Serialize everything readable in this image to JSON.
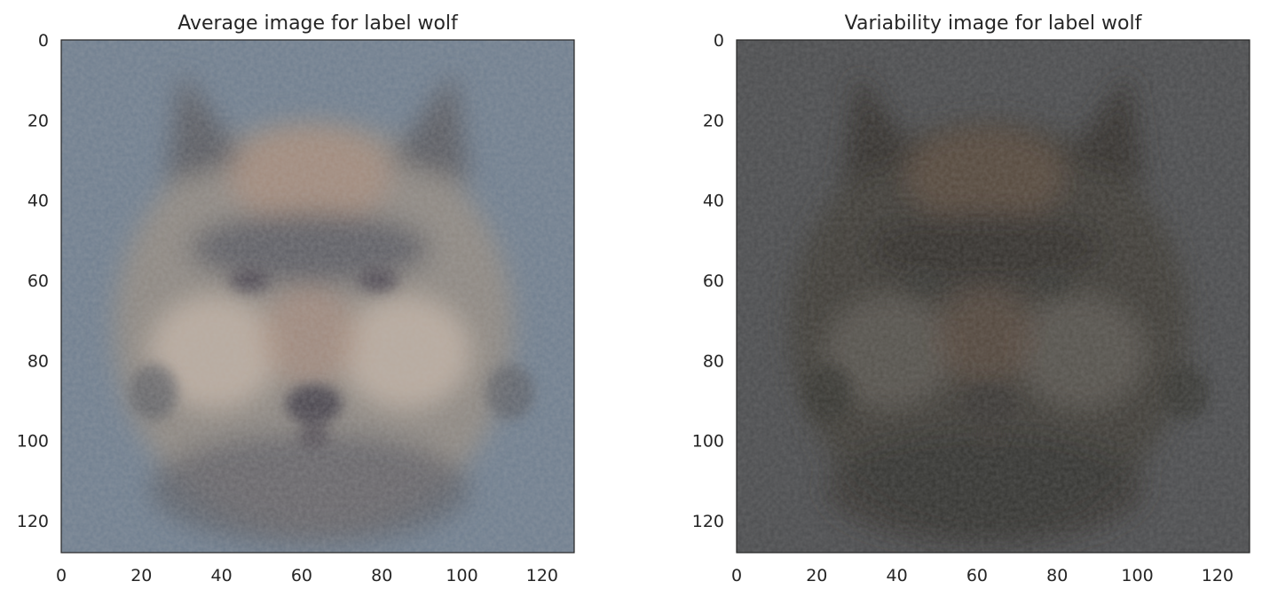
{
  "chart_data": [
    {
      "type": "heatmap",
      "title": "Average image for label wolf",
      "xlabel": "",
      "ylabel": "",
      "xlim": [
        0,
        128
      ],
      "ylim": [
        128,
        0
      ],
      "x_ticks": [
        0,
        20,
        40,
        60,
        80,
        100,
        120
      ],
      "y_ticks": [
        0,
        20,
        40,
        60,
        80,
        100,
        120
      ],
      "grid": false,
      "palette": {
        "background": "#6f7e8f",
        "face": "#8e8882",
        "face_dark": "#5a5b62",
        "muzzle": "#b9ab9f",
        "nose": "#4b4650",
        "accent": "#a88c7c"
      }
    },
    {
      "type": "heatmap",
      "title": "Variability image for label wolf",
      "xlabel": "",
      "ylabel": "",
      "xlim": [
        0,
        128
      ],
      "ylim": [
        128,
        0
      ],
      "x_ticks": [
        0,
        20,
        40,
        60,
        80,
        100,
        120
      ],
      "y_ticks": [
        0,
        20,
        40,
        60,
        80,
        100,
        120
      ],
      "grid": false,
      "palette": {
        "background": "#4c4d4f",
        "face": "#3f3c39",
        "face_dark": "#34322f",
        "muzzle": "#57524d",
        "nose": "#3a3735",
        "accent": "#5c4b3f"
      }
    }
  ]
}
